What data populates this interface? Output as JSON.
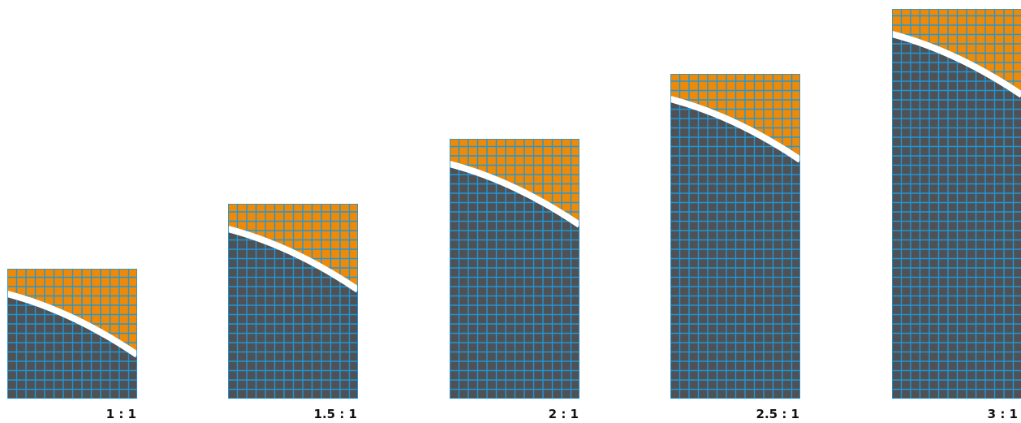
{
  "colors": {
    "top": "#ee8a08",
    "bottom": "#4f5154",
    "grid": "#1f97d8",
    "band": "#ffffff"
  },
  "panels": [
    {
      "label": "1 : 1",
      "ratio": 1
    },
    {
      "label": "1.5 : 1",
      "ratio": 1.5
    },
    {
      "label": "2 : 1",
      "ratio": 2
    },
    {
      "label": "2.5 : 1",
      "ratio": 2.5
    },
    {
      "label": "3 : 1",
      "ratio": 3
    }
  ]
}
